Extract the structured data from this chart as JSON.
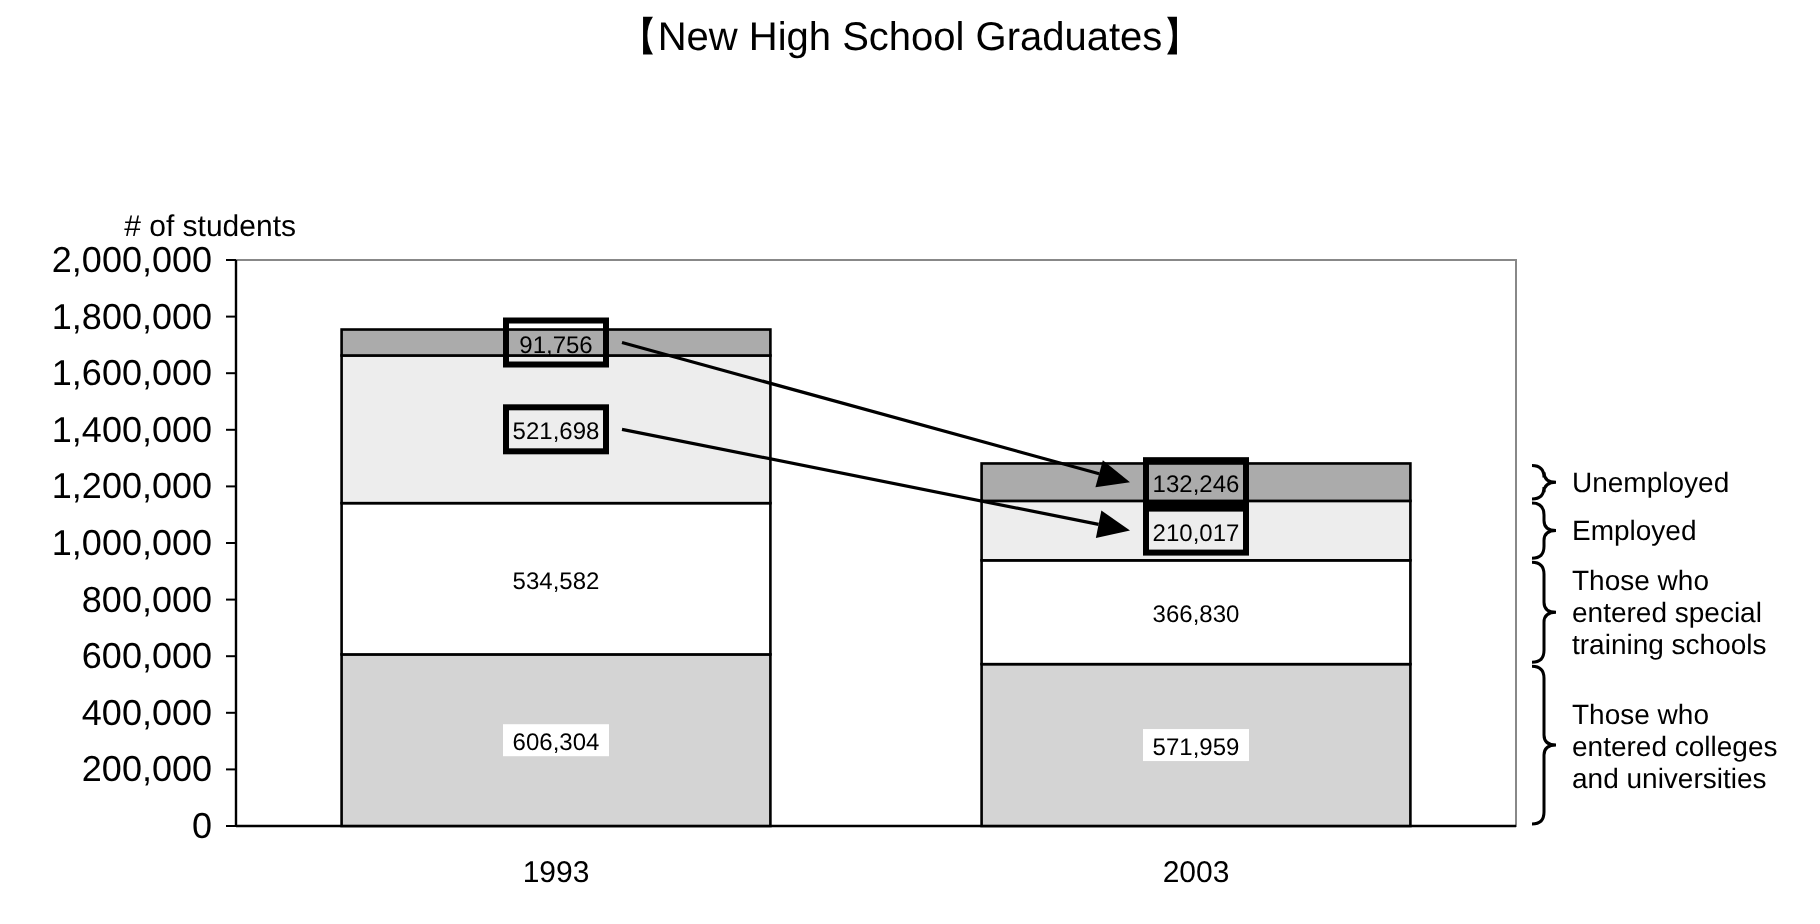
{
  "chart_data": {
    "type": "bar",
    "stacked": true,
    "title": "【New High School Graduates】",
    "ylabel": "# of students",
    "legend": "right",
    "categories": [
      "1993",
      "2003"
    ],
    "ylim": [
      0,
      2000000
    ],
    "yticks": [
      {
        "value": 0,
        "label": "0"
      },
      {
        "value": 200000,
        "label": "200,000"
      },
      {
        "value": 400000,
        "label": "400,000"
      },
      {
        "value": 600000,
        "label": "600,000"
      },
      {
        "value": 800000,
        "label": "800,000"
      },
      {
        "value": 1000000,
        "label": "1,000,000"
      },
      {
        "value": 1200000,
        "label": "1,200,000"
      },
      {
        "value": 1400000,
        "label": "1,400,000"
      },
      {
        "value": 1600000,
        "label": "1,600,000"
      },
      {
        "value": 1800000,
        "label": "1,800,000"
      },
      {
        "value": 2000000,
        "label": "2,000,000"
      }
    ],
    "series": [
      {
        "name": "Those who entered colleges and universities",
        "color": "#d4d4d4",
        "values": [
          606304,
          571959
        ],
        "value_labels": [
          "606,304",
          "571,959"
        ]
      },
      {
        "name": "Those who entered special training schools",
        "color": "#ffffff",
        "values": [
          534582,
          366830
        ],
        "value_labels": [
          "534,582",
          "366,830"
        ]
      },
      {
        "name": "Employed",
        "color": "#ededed",
        "values": [
          521698,
          210017
        ],
        "value_labels": [
          "521,698",
          "210,017"
        ]
      },
      {
        "name": "Unemployed",
        "color": "#ababab",
        "values": [
          91756,
          132246
        ],
        "value_labels": [
          "91,756",
          "132,246"
        ]
      }
    ]
  }
}
